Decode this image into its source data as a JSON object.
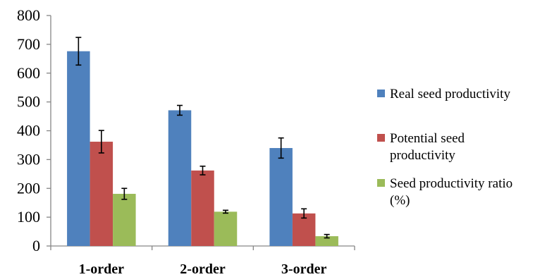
{
  "chart_data": {
    "type": "bar",
    "categories": [
      "1-order",
      "2-order",
      "3-order"
    ],
    "series": [
      {
        "name": "Real seed productivity",
        "name_lines": [
          "Real seed productivity"
        ],
        "color": "#4F81BD",
        "values": [
          676,
          471,
          340
        ],
        "errors": [
          48,
          17,
          35
        ]
      },
      {
        "name": "Potential seed productivity",
        "name_lines": [
          "Potential seed",
          "productivity"
        ],
        "color": "#C0504D",
        "values": [
          362,
          262,
          113
        ],
        "errors": [
          39,
          15,
          16
        ]
      },
      {
        "name": "Seed productivity ratio (%)",
        "name_lines": [
          "Seed productivity ratio",
          "(%)"
        ],
        "color": "#9BBB59",
        "values": [
          181,
          119,
          34
        ],
        "errors": [
          19,
          5,
          6
        ]
      }
    ],
    "yticks": [
      0,
      100,
      200,
      300,
      400,
      500,
      600,
      700,
      800
    ],
    "ylim": [
      0,
      800
    ],
    "grid": false,
    "legend_position": "right"
  }
}
